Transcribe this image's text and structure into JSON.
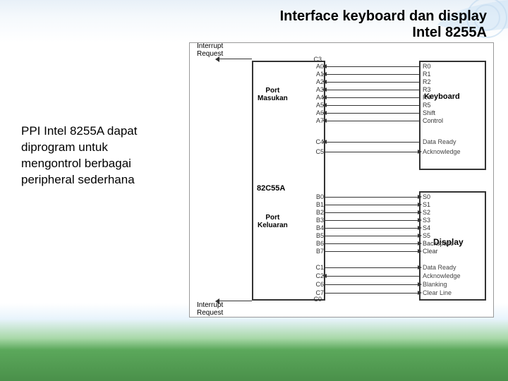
{
  "title_line1": "Interface keyboard dan display",
  "title_line2": "Intel 8255A",
  "description": "PPI Intel 8255A dapat diprogram untuk mengontrol berbagai peripheral sederhana",
  "diagram": {
    "chip_label": "82C55A",
    "port_in_label": "Port\nMasukan",
    "port_out_label": "Port\nKeluaran",
    "irq_label": "Interrupt\nRequest",
    "keyboard_label": "Keyboard",
    "display_label": "Display",
    "port_a_pins": [
      "A0",
      "A1",
      "A2",
      "A3",
      "A4",
      "A5",
      "A6",
      "A7"
    ],
    "keyboard_pins": [
      "R0",
      "R1",
      "R2",
      "R3",
      "R4",
      "R5",
      "Shift",
      "Control"
    ],
    "kbd_handshake_chip": [
      "C4",
      "C5"
    ],
    "kbd_handshake_dev": [
      "Data Ready",
      "Acknowledge"
    ],
    "port_b_pins": [
      "B0",
      "B1",
      "B2",
      "B3",
      "B4",
      "B5",
      "B6",
      "B7"
    ],
    "display_pins": [
      "S0",
      "S1",
      "S2",
      "S3",
      "S4",
      "S5",
      "Backspace",
      "Clear"
    ],
    "disp_handshake_chip": [
      "C1",
      "C2",
      "C6",
      "C7"
    ],
    "disp_handshake_dev": [
      "Data Ready",
      "Acknowledge",
      "Blanking",
      "Clear Line"
    ],
    "irq_pins": [
      "C3",
      "C0"
    ]
  },
  "style": {
    "chip_border": "#333333",
    "wire_color": "#333333",
    "bg_grass": "#5ba85b",
    "bg_sky": "#e8f0f8",
    "title_fontsize": 20,
    "desc_fontsize": 17,
    "pin_fontsize": 9
  }
}
